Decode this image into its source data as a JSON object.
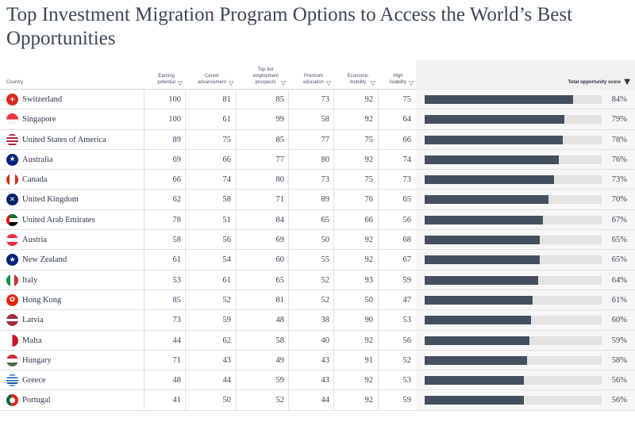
{
  "title": "Top Investment Migration Program Options to Access the World’s Best Opportunities",
  "headers": {
    "country": "Country",
    "earning": "Earning\npotential",
    "career": "Career\nadvancement",
    "employment": "Top-tier\nemployment\nprospects",
    "education": "Premium\neducation",
    "mobility": "Economic\nmobility",
    "livability": "High\nlivability",
    "score": "Total opportunity score",
    "sort_glyph": "▽",
    "sort_active_glyph": "▼"
  },
  "rows": [
    {
      "country": "Switzerland",
      "flag": "switzerland-flag-icon",
      "earning": "100",
      "career": "81",
      "employment": "85",
      "education": "73",
      "mobility": "92",
      "livability": "75",
      "score": 84,
      "score_label": "84%"
    },
    {
      "country": "Singapore",
      "flag": "singapore-flag-icon",
      "earning": "100",
      "career": "61",
      "employment": "99",
      "education": "58",
      "mobility": "92",
      "livability": "64",
      "score": 79,
      "score_label": "79%"
    },
    {
      "country": "United States of America",
      "flag": "usa-flag-icon",
      "earning": "89",
      "career": "75",
      "employment": "85",
      "education": "77",
      "mobility": "75",
      "livability": "66",
      "score": 78,
      "score_label": "78%"
    },
    {
      "country": "Australia",
      "flag": "australia-flag-icon",
      "earning": "69",
      "career": "66",
      "employment": "77",
      "education": "80",
      "mobility": "92",
      "livability": "74",
      "score": 76,
      "score_label": "76%"
    },
    {
      "country": "Canada",
      "flag": "canada-flag-icon",
      "earning": "66",
      "career": "74",
      "employment": "80",
      "education": "73",
      "mobility": "75",
      "livability": "73",
      "score": 73,
      "score_label": "73%"
    },
    {
      "country": "United Kingdom",
      "flag": "uk-flag-icon",
      "earning": "62",
      "career": "58",
      "employment": "71",
      "education": "89",
      "mobility": "76",
      "livability": "65",
      "score": 70,
      "score_label": "70%"
    },
    {
      "country": "United Arab Emirates",
      "flag": "uae-flag-icon",
      "earning": "78",
      "career": "51",
      "employment": "84",
      "education": "65",
      "mobility": "66",
      "livability": "56",
      "score": 67,
      "score_label": "67%"
    },
    {
      "country": "Austria",
      "flag": "austria-flag-icon",
      "earning": "58",
      "career": "56",
      "employment": "69",
      "education": "50",
      "mobility": "92",
      "livability": "68",
      "score": 65,
      "score_label": "65%"
    },
    {
      "country": "New Zealand",
      "flag": "new-zealand-flag-icon",
      "earning": "61",
      "career": "54",
      "employment": "60",
      "education": "55",
      "mobility": "92",
      "livability": "67",
      "score": 65,
      "score_label": "65%"
    },
    {
      "country": "Italy",
      "flag": "italy-flag-icon",
      "earning": "53",
      "career": "61",
      "employment": "65",
      "education": "52",
      "mobility": "93",
      "livability": "59",
      "score": 64,
      "score_label": "64%"
    },
    {
      "country": "Hong Kong",
      "flag": "hong-kong-flag-icon",
      "earning": "85",
      "career": "52",
      "employment": "81",
      "education": "52",
      "mobility": "50",
      "livability": "47",
      "score": 61,
      "score_label": "61%"
    },
    {
      "country": "Latvia",
      "flag": "latvia-flag-icon",
      "earning": "73",
      "career": "59",
      "employment": "48",
      "education": "38",
      "mobility": "90",
      "livability": "53",
      "score": 60,
      "score_label": "60%"
    },
    {
      "country": "Malta",
      "flag": "malta-flag-icon",
      "earning": "44",
      "career": "62",
      "employment": "58",
      "education": "40",
      "mobility": "92",
      "livability": "56",
      "score": 59,
      "score_label": "59%"
    },
    {
      "country": "Hungary",
      "flag": "hungary-flag-icon",
      "earning": "71",
      "career": "43",
      "employment": "49",
      "education": "43",
      "mobility": "91",
      "livability": "52",
      "score": 58,
      "score_label": "58%"
    },
    {
      "country": "Greece",
      "flag": "greece-flag-icon",
      "earning": "48",
      "career": "44",
      "employment": "59",
      "education": "43",
      "mobility": "92",
      "livability": "53",
      "score": 56,
      "score_label": "56%"
    },
    {
      "country": "Portugal",
      "flag": "portugal-flag-icon",
      "earning": "41",
      "career": "50",
      "employment": "52",
      "education": "44",
      "mobility": "92",
      "livability": "59",
      "score": 56,
      "score_label": "56%"
    }
  ],
  "colors": {
    "bar_fill": "#44505e",
    "bar_track": "#e3e3e3",
    "text": "#2a3547"
  }
}
